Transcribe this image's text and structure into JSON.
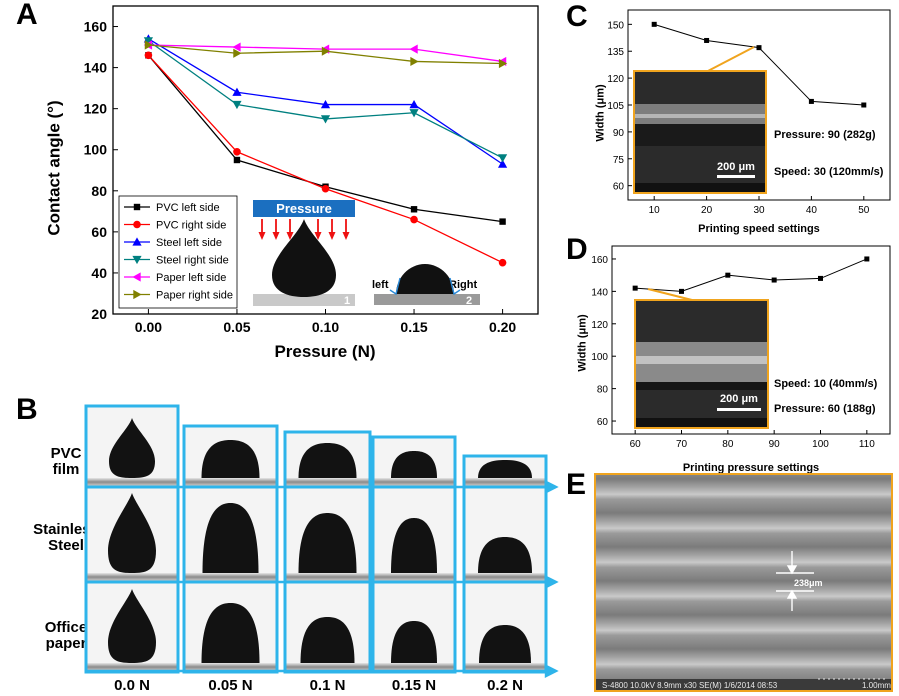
{
  "panels": {
    "a": {
      "letter": "A",
      "chart_data": {
        "type": "line",
        "xlabel": "Pressure (N)",
        "ylabel": "Contact angle (°)",
        "x": [
          0.0,
          0.05,
          0.1,
          0.15,
          0.2
        ],
        "xticks": [
          "0.00",
          "0.05",
          "0.10",
          "0.15",
          "0.20"
        ],
        "ylim": [
          20,
          170
        ],
        "yticks": [
          20,
          40,
          60,
          80,
          100,
          120,
          140,
          160
        ],
        "series": [
          {
            "name": "PVC left side",
            "color": "#000000",
            "marker": "square",
            "values": [
              146,
              95,
              82,
              71,
              65
            ]
          },
          {
            "name": "PVC right side",
            "color": "#ff0000",
            "marker": "circle",
            "values": [
              146,
              99,
              81,
              66,
              45
            ]
          },
          {
            "name": "Steel left side",
            "color": "#0000ff",
            "marker": "triangle-up",
            "values": [
              154,
              128,
              122,
              122,
              93
            ]
          },
          {
            "name": "Steel right side",
            "color": "#008080",
            "marker": "triangle-down",
            "values": [
              153,
              122,
              115,
              118,
              96
            ]
          },
          {
            "name": "Paper left side",
            "color": "#ff00ff",
            "marker": "triangle-left",
            "values": [
              151,
              150,
              149,
              149,
              143
            ]
          },
          {
            "name": "Paper right side",
            "color": "#808000",
            "marker": "triangle-right",
            "values": [
              151,
              147,
              148,
              143,
              142
            ]
          }
        ]
      },
      "inset": {
        "pressure_label": "Pressure",
        "num1": "1",
        "left_label": "left",
        "right_label": "Right",
        "num2": "2"
      }
    },
    "b": {
      "letter": "B",
      "rows": [
        "PVC film",
        "Stainless Steel",
        "Office paper"
      ],
      "columns": [
        "0.0 N",
        "0.05 N",
        "0.1 N",
        "0.15 N",
        "0.2 N"
      ]
    },
    "c": {
      "letter": "C",
      "chart_data": {
        "type": "line",
        "xlabel": "Printing speed settings",
        "ylabel": "Width (μm)",
        "x": [
          10,
          20,
          30,
          40,
          50
        ],
        "values": [
          150,
          141,
          137,
          107,
          105
        ],
        "xlim": [
          5,
          55
        ],
        "ylim": [
          52,
          158
        ],
        "yticks": [
          60,
          75,
          90,
          105,
          120,
          135,
          150
        ]
      },
      "scale_bar": "200 μm",
      "annotation_1": "Pressure: 90 (282g)",
      "annotation_2": "Speed: 30 (120mm/s)"
    },
    "d": {
      "letter": "D",
      "chart_data": {
        "type": "line",
        "xlabel": "Printing pressure settings",
        "ylabel": "Width (μm)",
        "x": [
          60,
          70,
          80,
          90,
          100,
          110
        ],
        "values": [
          142,
          140,
          150,
          147,
          148,
          160
        ],
        "xlim": [
          55,
          115
        ],
        "ylim": [
          52,
          168
        ],
        "yticks": [
          60,
          80,
          100,
          120,
          140,
          160
        ]
      },
      "scale_bar": "200 μm",
      "annotation_1": "Speed: 10 (40mm/s)",
      "annotation_2": "Pressure: 60 (188g)"
    },
    "e": {
      "letter": "E",
      "measure_label": "238μm",
      "footer": "S-4800 10.0kV 8.9mm x30 SE(M) 1/6/2014 08:53",
      "scale": "1.00mm"
    }
  },
  "colors": {
    "frame_blue": "#2eb4ea",
    "frame_gold": "#f0a41e",
    "inset_blue": "#1b6fc0"
  }
}
